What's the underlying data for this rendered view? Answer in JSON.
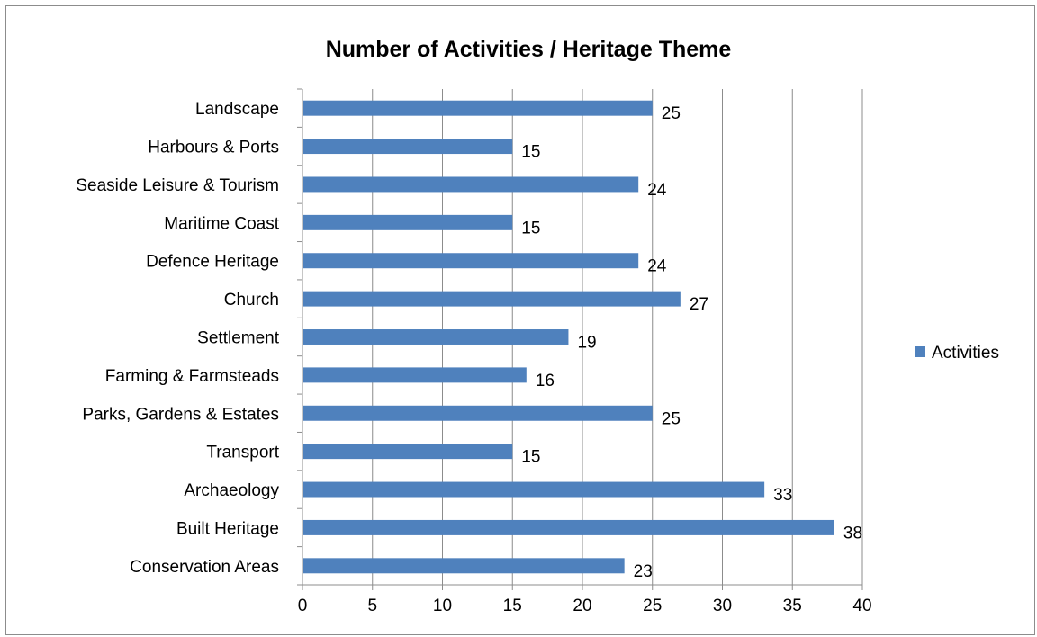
{
  "chart_data": {
    "type": "bar",
    "orientation": "horizontal",
    "title": "Number of Activities / Heritage Theme",
    "xlabel": "",
    "ylabel": "",
    "categories": [
      "Landscape",
      "Harbours & Ports",
      "Seaside Leisure & Tourism",
      "Maritime Coast",
      "Defence Heritage",
      "Church",
      "Settlement",
      "Farming & Farmsteads",
      "Parks, Gardens & Estates",
      "Transport",
      "Archaeology",
      "Built Heritage",
      "Conservation Areas"
    ],
    "series": [
      {
        "name": "Activities",
        "values": [
          25,
          15,
          24,
          15,
          24,
          27,
          19,
          16,
          25,
          15,
          33,
          38,
          23
        ],
        "color": "#4f81bd"
      }
    ],
    "xlim": [
      0,
      40
    ],
    "xticks": [
      "0",
      "5",
      "10",
      "15",
      "20",
      "25",
      "30",
      "35",
      "40"
    ],
    "grid": "vertical",
    "data_labels": true,
    "legend": {
      "position": "right",
      "entries": [
        "Activities"
      ]
    }
  }
}
